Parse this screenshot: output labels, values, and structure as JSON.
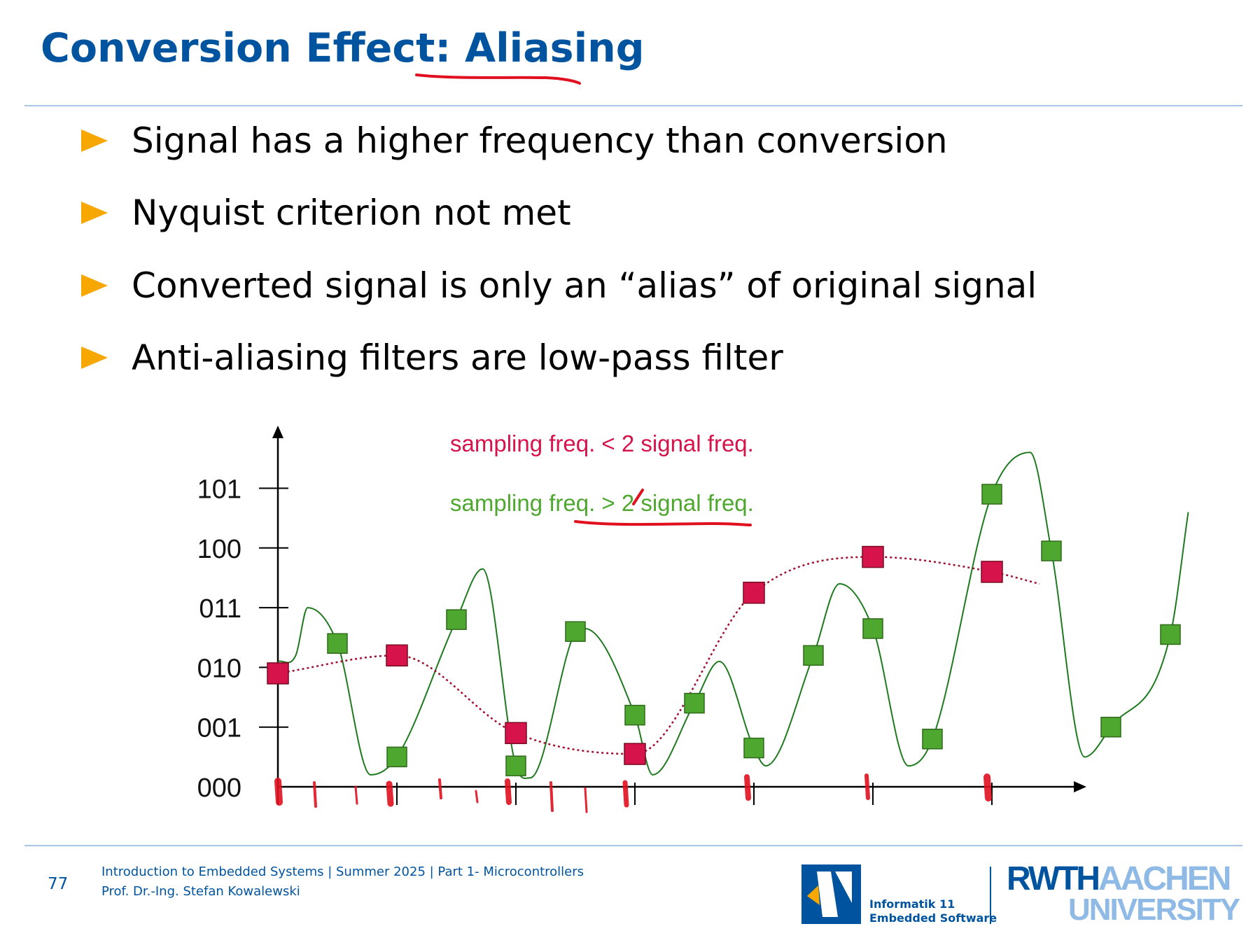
{
  "slide": {
    "title_prefix": "Conversion Effect: ",
    "title_highlight": "Aliasing",
    "bullets": [
      "Signal has a higher frequency than conversion",
      "Nyquist criterion not met",
      "Converted signal is only an “alias” of original signal",
      "Anti-aliasing filters are low-pass filter"
    ],
    "colors": {
      "title": "#00549F",
      "bullet_marker": "#F6A800",
      "annotation": "#E01020"
    }
  },
  "chart_data": {
    "type": "line",
    "yticks": [
      "000",
      "001",
      "010",
      "011",
      "100",
      "101"
    ],
    "legend": {
      "undersampled": "sampling freq. < 2 signal freq.",
      "nyquist": "sampling freq. > 2 signal freq."
    },
    "legend_colors": {
      "undersampled": "#D6134B",
      "nyquist": "#4EA72E"
    },
    "green_samples": [
      {
        "t": 0.5,
        "v": 2.4
      },
      {
        "t": 1.0,
        "v": 0.5
      },
      {
        "t": 1.5,
        "v": 2.8
      },
      {
        "t": 2.0,
        "v": 0.35
      },
      {
        "t": 2.5,
        "v": 2.6
      },
      {
        "t": 3.0,
        "v": 1.2
      },
      {
        "t": 3.5,
        "v": 1.4
      },
      {
        "t": 4.0,
        "v": 0.65
      },
      {
        "t": 4.5,
        "v": 2.2
      },
      {
        "t": 5.0,
        "v": 2.65
      },
      {
        "t": 5.5,
        "v": 0.8
      },
      {
        "t": 6.0,
        "v": 4.9
      },
      {
        "t": 6.5,
        "v": 3.95
      },
      {
        "t": 7.0,
        "v": 1.0
      },
      {
        "t": 7.5,
        "v": 2.55
      }
    ],
    "red_samples": [
      {
        "t": 0,
        "v": 1.9
      },
      {
        "t": 1.0,
        "v": 2.2
      },
      {
        "t": 2.0,
        "v": 0.9
      },
      {
        "t": 3.0,
        "v": 0.55
      },
      {
        "t": 4.0,
        "v": 3.25
      },
      {
        "t": 5.0,
        "v": 3.85
      },
      {
        "t": 6.0,
        "v": 3.6
      }
    ]
  },
  "footer": {
    "page_number": "77",
    "line1": "Introduction to Embedded Systems | Summer 2025 | Part 1- Microcontrollers",
    "line2": "Prof. Dr.-Ing. Stefan Kowalewski",
    "logo1_line1": "Informatik 11",
    "logo1_line2": "Embedded Software",
    "logo2_top": "RWTHAACHEN",
    "logo2_bottom": "UNIVERSITY"
  }
}
